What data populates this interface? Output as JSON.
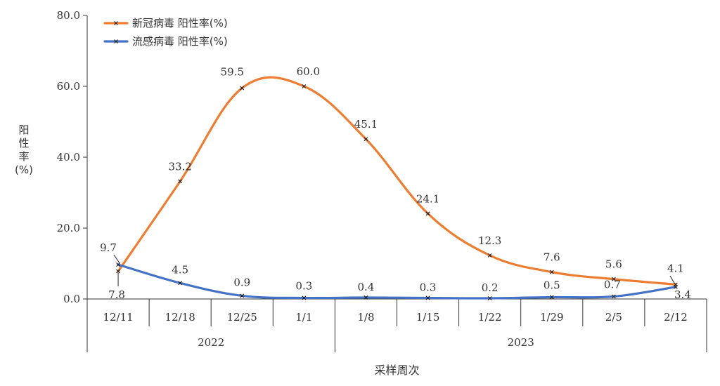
{
  "chart_data": {
    "type": "line",
    "ylabel": "阳性率 (%)",
    "xlabel": "采样周次",
    "ylim": [
      0,
      80
    ],
    "yticks": [
      "0.0",
      "20.0",
      "40.0",
      "60.0",
      "80.0"
    ],
    "categories": [
      "12/11",
      "12/18",
      "12/25",
      "1/1",
      "1/8",
      "1/15",
      "1/22",
      "1/29",
      "2/5",
      "2/12"
    ],
    "year_groups": [
      {
        "label": "2022",
        "start": 0,
        "end": 4
      },
      {
        "label": "2023",
        "start": 4,
        "end": 10
      }
    ],
    "series": [
      {
        "name": "新冠病毒 阳性率(%)",
        "color": "#ED7D31",
        "values": [
          7.8,
          33.2,
          59.5,
          60.0,
          45.1,
          24.1,
          12.3,
          7.6,
          5.6,
          4.1
        ],
        "labels": [
          "7.8",
          "33.2",
          "59.5",
          "60.0",
          "45.1",
          "24.1",
          "12.3",
          "7.6",
          "5.6",
          "4.1"
        ]
      },
      {
        "name": "流感病毒 阳性率(%)",
        "color": "#4472C4",
        "values": [
          9.7,
          4.5,
          0.9,
          0.3,
          0.4,
          0.3,
          0.2,
          0.5,
          0.7,
          3.4
        ],
        "labels": [
          "9.7",
          "4.5",
          "0.9",
          "0.3",
          "0.4",
          "0.3",
          "0.2",
          "0.5",
          "0.7",
          "3.4"
        ]
      }
    ],
    "legend": "top-left",
    "grid": false
  }
}
